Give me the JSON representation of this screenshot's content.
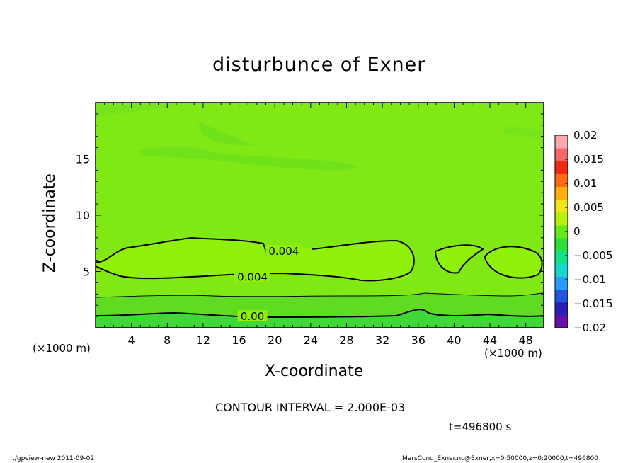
{
  "chart_data": {
    "type": "heatmap",
    "title": "disturbunce of Exner",
    "xlabel": "X-coordinate",
    "ylabel": "Z-coordinate",
    "x_unit_label": "(×1000 m)",
    "x_ticks": [
      4,
      8,
      12,
      16,
      20,
      24,
      28,
      32,
      36,
      40,
      44,
      48
    ],
    "y_ticks": [
      5,
      10,
      15
    ],
    "xlim": [
      0,
      50
    ],
    "ylim": [
      0,
      20
    ],
    "contour_interval_text": "CONTOUR INTERVAL = 2.000E-03",
    "time_text": "t=496800 s",
    "contour_labels": [
      {
        "text": "0.004",
        "x": 21,
        "y": 6.8
      },
      {
        "text": "0.004",
        "x": 17.5,
        "y": 4.5
      },
      {
        "text": "0.00",
        "x": 17.5,
        "y": 1.0
      }
    ],
    "colorbar": {
      "ticks": [
        "0.02",
        "0.015",
        "0.01",
        "0.005",
        "0",
        "−0.005",
        "−0.01",
        "−0.015",
        "−0.02"
      ],
      "min": -0.02,
      "max": 0.02,
      "colors": [
        "#6a0fa8",
        "#2a1fb5",
        "#1f55e0",
        "#2a9cff",
        "#18d6c8",
        "#14e08a",
        "#2edc3a",
        "#66e81c",
        "#b6f00c",
        "#f2e61a",
        "#ffb010",
        "#ff6a14",
        "#f02a14",
        "#f4686a",
        "#f9a8ac"
      ]
    },
    "field_levels": [
      {
        "range": "0.002 to 0.004",
        "color": "#80e815"
      },
      {
        "range": "0.004 to 0.006",
        "color": "#8ff00a"
      },
      {
        "range": "0 to 0.002",
        "color": "#55dc24"
      },
      {
        "range": "< 0",
        "color": "#2ed83a"
      }
    ]
  },
  "footer": {
    "left": "./gpview-new  2011-09-02",
    "right": "MarsCond_Exner.nc@Exner,x=0:50000,z=0:20000,t=496800"
  }
}
